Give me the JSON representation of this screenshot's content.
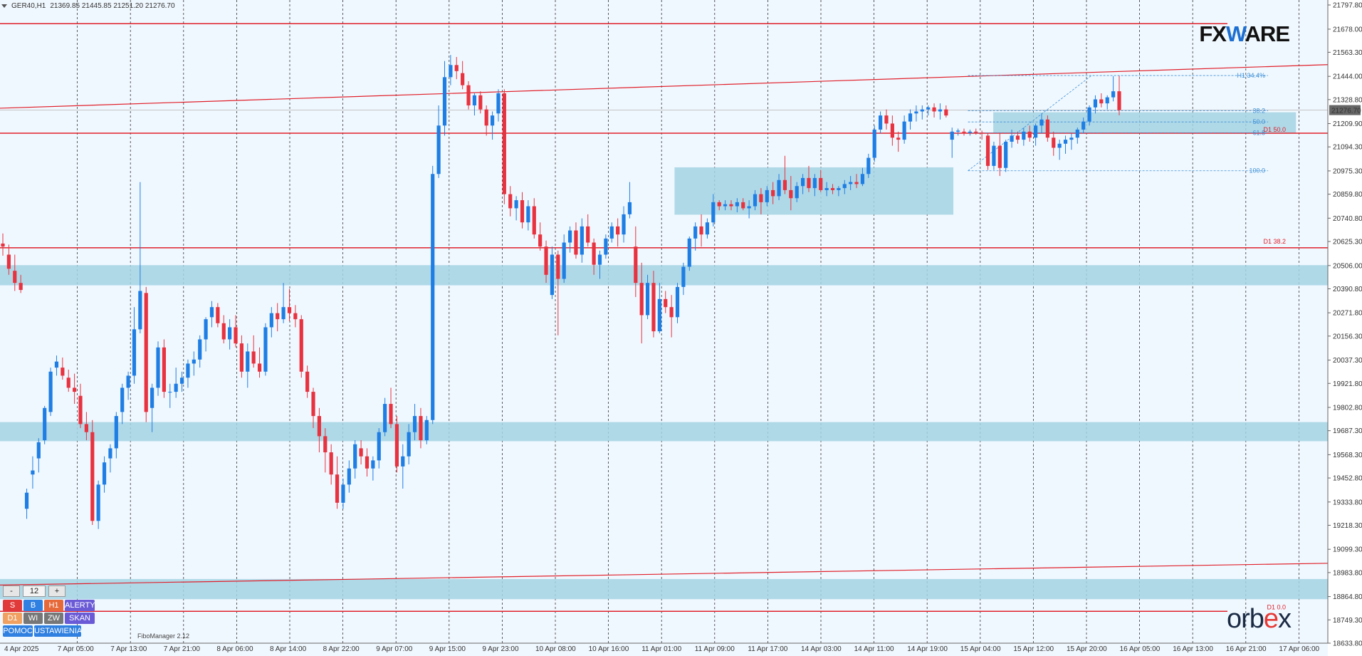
{
  "header": {
    "symbol": "GER40,H1",
    "ohlc": "21369.85 21445.85 21251.20 21276.70"
  },
  "colors": {
    "background": "#f0f8ff",
    "bull": "#1e7ee4",
    "bear": "#e8323f",
    "level": "#e0202a",
    "zone": "#a5d4e4",
    "fib": "#3b8fd6"
  },
  "chart_data": {
    "type": "candlestick",
    "title": "",
    "symbol": "GER40",
    "timeframe": "H1",
    "ylim": [
      18633.8,
      21797.8
    ],
    "y_ticks": [
      "21797.80",
      "21678.00",
      "21563.30",
      "21444.00",
      "21328.80",
      "21209.90",
      "21094.30",
      "20975.30",
      "20859.80",
      "20740.80",
      "20625.30",
      "20506.00",
      "20390.80",
      "20271.80",
      "20156.30",
      "20037.30",
      "19921.80",
      "19802.80",
      "19687.30",
      "19568.30",
      "19452.80",
      "19333.80",
      "19218.30",
      "19099.30",
      "18983.80",
      "18864.80",
      "18749.30",
      "18633.80"
    ],
    "x_ticks": [
      "4 Apr 2025",
      "7 Apr 05:00",
      "7 Apr 13:00",
      "7 Apr 21:00",
      "8 Apr 06:00",
      "8 Apr 14:00",
      "8 Apr 22:00",
      "9 Apr 07:00",
      "9 Apr 15:00",
      "9 Apr 23:00",
      "10 Apr 08:00",
      "10 Apr 16:00",
      "11 Apr 01:00",
      "11 Apr 09:00",
      "11 Apr 17:00",
      "14 Apr 03:00",
      "14 Apr 11:00",
      "14 Apr 19:00",
      "15 Apr 04:00",
      "15 Apr 12:00",
      "15 Apr 20:00",
      "16 Apr 05:00",
      "16 Apr 13:00",
      "16 Apr 21:00",
      "17 Apr 06:00"
    ],
    "current_price": "21276.70",
    "horizontal_levels": [
      21705,
      21162,
      20594,
      18792
    ],
    "trendlines": [
      {
        "x_from": 0,
        "y_from": 21286,
        "x_to": 1,
        "y_to": 21502
      },
      {
        "x_from": 0,
        "y_from": 18922,
        "x_to": 1,
        "y_to": 19030
      }
    ],
    "zones": [
      {
        "x_from": 0,
        "x_to": 1,
        "y_from": 20408,
        "y_to": 20508
      },
      {
        "x_from": 0,
        "x_to": 1,
        "y_from": 19635,
        "y_to": 19730
      },
      {
        "x_from": 0,
        "x_to": 1,
        "y_from": 18852,
        "y_to": 18952
      },
      {
        "x_from": 0.508,
        "x_to": 0.718,
        "y_from": 20758,
        "y_to": 20993
      },
      {
        "x_from": 0.748,
        "x_to": 0.976,
        "y_from": 21162,
        "y_to": 21266
      }
    ],
    "fibonacci": {
      "levels": [
        {
          "label": "H1 34.4%",
          "value": 21448
        },
        {
          "label": "38.2",
          "value": 21274
        },
        {
          "label": "50.0",
          "value": 21218
        },
        {
          "label": "61.8",
          "value": 21164
        },
        {
          "label": "100.0",
          "value": 20976
        }
      ],
      "d1_labels": [
        {
          "label": "D1 50.0",
          "value": 21170
        },
        {
          "label": "D1 38.2",
          "value": 20615
        },
        {
          "label": "D1 0.0",
          "value": 18802
        }
      ]
    },
    "candles": [
      [
        20615,
        20665,
        20555,
        20600
      ],
      [
        20560,
        20610,
        20460,
        20490
      ],
      [
        20480,
        20560,
        20380,
        20420
      ],
      [
        20420,
        20460,
        20370,
        20385
      ],
      [
        19300,
        19400,
        19250,
        19380
      ],
      [
        19470,
        19560,
        19400,
        19490
      ],
      [
        19550,
        19650,
        19480,
        19630
      ],
      [
        19640,
        19810,
        19620,
        19800
      ],
      [
        19780,
        20000,
        19760,
        19980
      ],
      [
        20000,
        20060,
        19960,
        20030
      ],
      [
        20000,
        20050,
        19940,
        19960
      ],
      [
        19950,
        19990,
        19880,
        19900
      ],
      [
        19900,
        19970,
        19820,
        19880
      ],
      [
        19860,
        19920,
        19700,
        19720
      ],
      [
        19720,
        19780,
        19640,
        19680
      ],
      [
        19680,
        19740,
        19220,
        19240
      ],
      [
        19240,
        19440,
        19200,
        19420
      ],
      [
        19420,
        19560,
        19380,
        19530
      ],
      [
        19550,
        19620,
        19480,
        19600
      ],
      [
        19600,
        19780,
        19550,
        19760
      ],
      [
        19780,
        19920,
        19720,
        19900
      ],
      [
        19900,
        19980,
        19840,
        19960
      ],
      [
        19960,
        20300,
        19920,
        20190
      ],
      [
        20190,
        20920,
        20170,
        20380
      ],
      [
        20370,
        20400,
        19730,
        19780
      ],
      [
        19800,
        19920,
        19680,
        19900
      ],
      [
        19900,
        20130,
        19860,
        20100
      ],
      [
        20100,
        20140,
        19850,
        19880
      ],
      [
        19880,
        19920,
        19800,
        19880
      ],
      [
        19880,
        20000,
        19850,
        19920
      ],
      [
        19920,
        19980,
        19880,
        19950
      ],
      [
        19950,
        20040,
        19900,
        20020
      ],
      [
        20020,
        20080,
        19960,
        20040
      ],
      [
        20040,
        20160,
        20000,
        20140
      ],
      [
        20140,
        20250,
        20080,
        20240
      ],
      [
        20250,
        20330,
        20200,
        20300
      ],
      [
        20300,
        20320,
        20200,
        20220
      ],
      [
        20220,
        20260,
        20120,
        20140
      ],
      [
        20140,
        20240,
        20090,
        20200
      ],
      [
        20200,
        20260,
        20100,
        20120
      ],
      [
        20120,
        20160,
        19950,
        19980
      ],
      [
        19980,
        20120,
        19900,
        20080
      ],
      [
        20080,
        20160,
        20000,
        20020
      ],
      [
        20020,
        20100,
        19950,
        19980
      ],
      [
        19980,
        20220,
        19960,
        20200
      ],
      [
        20200,
        20300,
        20150,
        20270
      ],
      [
        20270,
        20320,
        20180,
        20240
      ],
      [
        20240,
        20420,
        20220,
        20300
      ],
      [
        20300,
        20390,
        20230,
        20270
      ],
      [
        20270,
        20310,
        20200,
        20240
      ],
      [
        20240,
        20260,
        19950,
        19980
      ],
      [
        19980,
        20010,
        19850,
        19880
      ],
      [
        19880,
        19900,
        19700,
        19760
      ],
      [
        19760,
        19800,
        19580,
        19660
      ],
      [
        19660,
        19700,
        19480,
        19580
      ],
      [
        19580,
        19620,
        19420,
        19470
      ],
      [
        19470,
        19560,
        19300,
        19330
      ],
      [
        19330,
        19450,
        19300,
        19420
      ],
      [
        19420,
        19540,
        19380,
        19500
      ],
      [
        19500,
        19640,
        19450,
        19620
      ],
      [
        19600,
        19640,
        19520,
        19560
      ],
      [
        19560,
        19600,
        19460,
        19500
      ],
      [
        19500,
        19560,
        19440,
        19540
      ],
      [
        19540,
        19700,
        19500,
        19680
      ],
      [
        19680,
        19850,
        19660,
        19820
      ],
      [
        19820,
        19900,
        19700,
        19720
      ],
      [
        19720,
        19760,
        19480,
        19510
      ],
      [
        19510,
        19620,
        19400,
        19560
      ],
      [
        19560,
        19720,
        19520,
        19680
      ],
      [
        19680,
        19820,
        19640,
        19760
      ],
      [
        19760,
        19800,
        19600,
        19640
      ],
      [
        19640,
        19760,
        19620,
        19740
      ],
      [
        19740,
        21000,
        19720,
        20960
      ],
      [
        20960,
        21300,
        20940,
        21200
      ],
      [
        21200,
        21520,
        21150,
        21440
      ],
      [
        21440,
        21550,
        21400,
        21500
      ],
      [
        21500,
        21540,
        21430,
        21470
      ],
      [
        21460,
        21520,
        21380,
        21400
      ],
      [
        21400,
        21420,
        21280,
        21300
      ],
      [
        21300,
        21360,
        21250,
        21350
      ],
      [
        21350,
        21370,
        21260,
        21280
      ],
      [
        21280,
        21300,
        21150,
        21200
      ],
      [
        21200,
        21270,
        21130,
        21250
      ],
      [
        21260,
        21380,
        21220,
        21360
      ],
      [
        21360,
        21380,
        20810,
        20860
      ],
      [
        20860,
        20900,
        20750,
        20790
      ],
      [
        20790,
        20850,
        20730,
        20830
      ],
      [
        20830,
        20870,
        20690,
        20720
      ],
      [
        20720,
        20830,
        20680,
        20800
      ],
      [
        20800,
        20840,
        20640,
        20660
      ],
      [
        20660,
        20720,
        20580,
        20600
      ],
      [
        20600,
        20630,
        20420,
        20460
      ],
      [
        20360,
        20600,
        20340,
        20560
      ],
      [
        20560,
        20580,
        20160,
        20440
      ],
      [
        20440,
        20660,
        20420,
        20620
      ],
      [
        20620,
        20700,
        20570,
        20680
      ],
      [
        20680,
        20720,
        20540,
        20560
      ],
      [
        20560,
        20740,
        20520,
        20700
      ],
      [
        20700,
        20760,
        20600,
        20620
      ],
      [
        20620,
        20640,
        20460,
        20510
      ],
      [
        20510,
        20580,
        20440,
        20560
      ],
      [
        20560,
        20660,
        20540,
        20640
      ],
      [
        20640,
        20720,
        20620,
        20700
      ],
      [
        20700,
        20740,
        20600,
        20660
      ],
      [
        20660,
        20800,
        20620,
        20760
      ],
      [
        20760,
        20920,
        20740,
        20820
      ],
      [
        20600,
        20700,
        20350,
        20420
      ],
      [
        20420,
        20520,
        20120,
        20260
      ],
      [
        20260,
        20460,
        20240,
        20420
      ],
      [
        20420,
        20480,
        20150,
        20180
      ],
      [
        20180,
        20420,
        20170,
        20340
      ],
      [
        20340,
        20380,
        20270,
        20300
      ],
      [
        20300,
        20360,
        20150,
        20250
      ],
      [
        20250,
        20420,
        20220,
        20400
      ],
      [
        20400,
        20520,
        20360,
        20500
      ],
      [
        20500,
        20650,
        20480,
        20640
      ],
      [
        20640,
        20720,
        20580,
        20700
      ],
      [
        20700,
        20760,
        20600,
        20660
      ],
      [
        20660,
        20740,
        20640,
        20720
      ],
      [
        20720,
        20860,
        20700,
        20820
      ],
      [
        20820,
        20830,
        20780,
        20800
      ],
      [
        20800,
        20830,
        20780,
        20810
      ],
      [
        20810,
        20830,
        20780,
        20800
      ],
      [
        20800,
        20840,
        20770,
        20820
      ],
      [
        20820,
        20840,
        20780,
        20790
      ],
      [
        20790,
        20830,
        20740,
        20800
      ],
      [
        20800,
        20880,
        20780,
        20860
      ],
      [
        20860,
        20890,
        20760,
        20820
      ],
      [
        20820,
        20900,
        20800,
        20880
      ],
      [
        20880,
        20920,
        20810,
        20850
      ],
      [
        20850,
        20960,
        20830,
        20930
      ],
      [
        20930,
        21050,
        20860,
        20880
      ],
      [
        20880,
        20950,
        20780,
        20840
      ],
      [
        20840,
        20920,
        20820,
        20900
      ],
      [
        20900,
        20960,
        20860,
        20940
      ],
      [
        20940,
        21000,
        20870,
        20890
      ],
      [
        20890,
        20960,
        20850,
        20940
      ],
      [
        20940,
        20980,
        20870,
        20880
      ],
      [
        20880,
        20920,
        20850,
        20890
      ],
      [
        20890,
        20910,
        20860,
        20880
      ],
      [
        20880,
        20900,
        20850,
        20890
      ],
      [
        20890,
        20930,
        20860,
        20910
      ],
      [
        20910,
        20950,
        20880,
        20920
      ],
      [
        20920,
        20960,
        20890,
        20910
      ],
      [
        20910,
        20990,
        20900,
        20960
      ],
      [
        20960,
        21060,
        20940,
        21040
      ],
      [
        21040,
        21200,
        21020,
        21180
      ],
      [
        21180,
        21270,
        21160,
        21250
      ],
      [
        21250,
        21280,
        21180,
        21210
      ],
      [
        21210,
        21250,
        21100,
        21140
      ],
      [
        21140,
        21170,
        21070,
        21130
      ],
      [
        21130,
        21250,
        21110,
        21220
      ],
      [
        21220,
        21280,
        21180,
        21260
      ],
      [
        21260,
        21300,
        21220,
        21270
      ],
      [
        21270,
        21300,
        21230,
        21280
      ],
      [
        21280,
        21300,
        21250,
        21290
      ],
      [
        21290,
        21310,
        21240,
        21270
      ],
      [
        21270,
        21310,
        21230,
        21280
      ],
      [
        21280,
        21300,
        21240,
        21250
      ],
      [
        21130,
        21190,
        21040,
        21170
      ],
      [
        21170,
        21185,
        21150,
        21175
      ],
      [
        21170,
        21185,
        21150,
        21165
      ],
      [
        21165,
        21180,
        21150,
        21170
      ],
      [
        21170,
        21185,
        21155,
        21165
      ],
      [
        21165,
        21175,
        21130,
        21160
      ],
      [
        21150,
        21160,
        20980,
        21000
      ],
      [
        21000,
        21120,
        20980,
        21100
      ],
      [
        21100,
        21160,
        20950,
        20990
      ],
      [
        20990,
        21130,
        20970,
        21120
      ],
      [
        21120,
        21180,
        21090,
        21150
      ],
      [
        21150,
        21170,
        21110,
        21130
      ],
      [
        21130,
        21190,
        21100,
        21170
      ],
      [
        21170,
        21200,
        21120,
        21140
      ],
      [
        21140,
        21210,
        21100,
        21200
      ],
      [
        21200,
        21260,
        21160,
        21230
      ],
      [
        21230,
        21250,
        21120,
        21140
      ],
      [
        21140,
        21170,
        21050,
        21090
      ],
      [
        21090,
        21130,
        21030,
        21110
      ],
      [
        21110,
        21150,
        21060,
        21130
      ],
      [
        21130,
        21160,
        21080,
        21140
      ],
      [
        21140,
        21190,
        21110,
        21180
      ],
      [
        21180,
        21240,
        21160,
        21220
      ],
      [
        21220,
        21300,
        21200,
        21290
      ],
      [
        21290,
        21350,
        21260,
        21330
      ],
      [
        21330,
        21360,
        21290,
        21310
      ],
      [
        21310,
        21350,
        21280,
        21340
      ],
      [
        21340,
        21445,
        21320,
        21370
      ],
      [
        21370,
        21446,
        21251,
        21276.7
      ]
    ]
  },
  "panel": {
    "zoom": {
      "minus": "-",
      "value": "12",
      "plus": "+"
    },
    "row1": [
      "S",
      "B",
      "H1",
      "ALERTY"
    ],
    "row2": [
      "D1",
      "WI",
      "ZW",
      "SKAN"
    ],
    "row3": [
      "POMOC",
      "USTAWIENIA"
    ],
    "fibo_manager": "FiboManager 2.12"
  },
  "logos": {
    "fxware_a": "FX",
    "fxware_b": "W",
    "fxware_c": "ARE",
    "orbex_a": "orb",
    "orbex_b": "e",
    "orbex_c": "x"
  }
}
